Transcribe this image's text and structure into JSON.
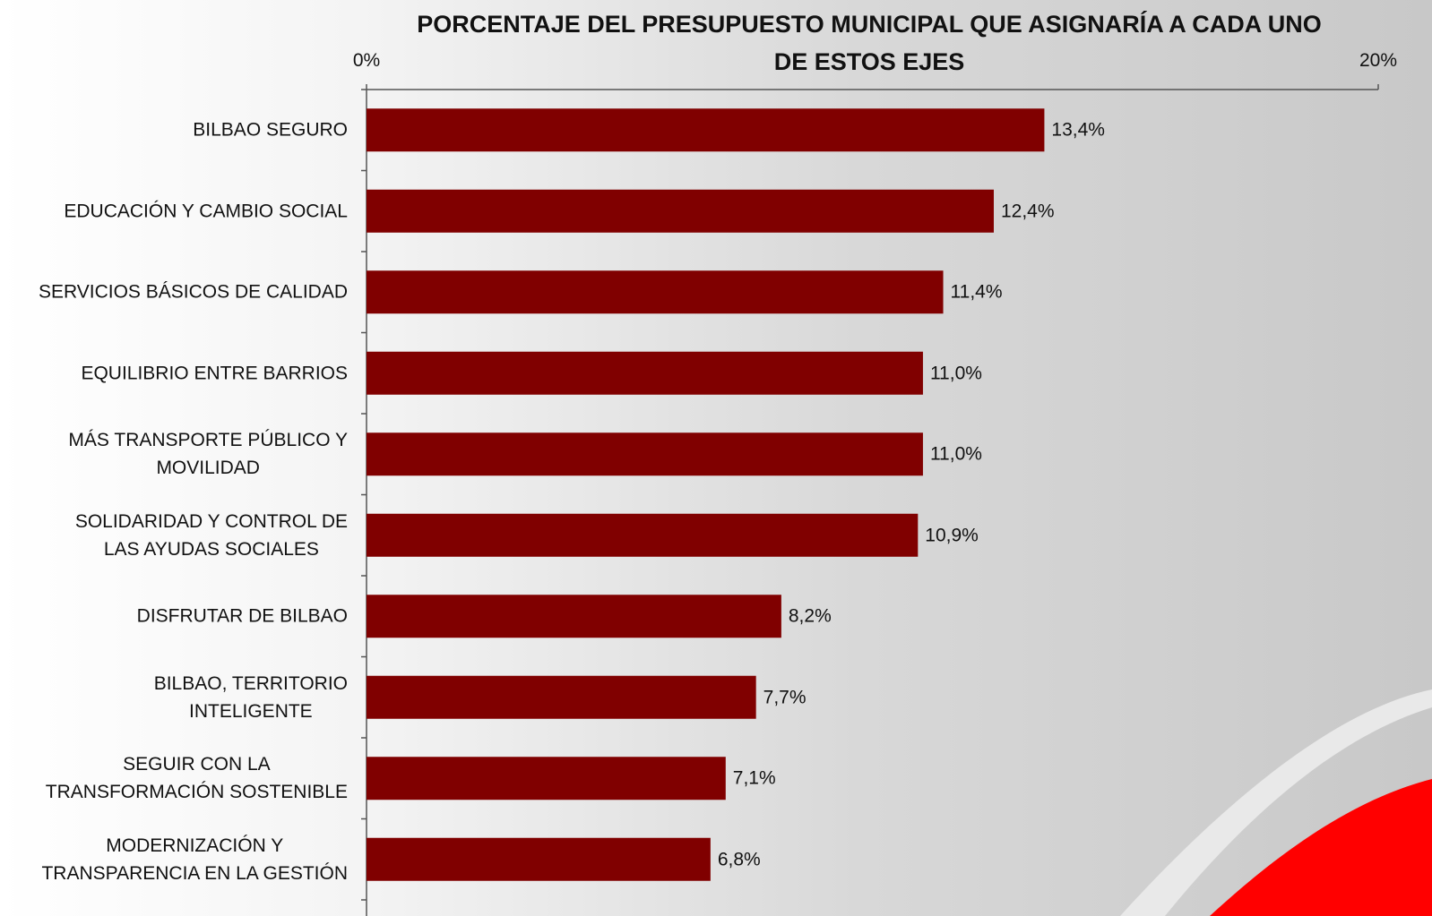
{
  "chart_data": {
    "type": "bar",
    "orientation": "horizontal",
    "title": "PORCENTAJE DEL PRESUPUESTO MUNICIPAL QUE ASIGNARÍA A CADA UNO DE ESTOS EJES",
    "categories": [
      "BILBAO SEGURO",
      "EDUCACIÓN Y CAMBIO SOCIAL",
      "SERVICIOS BÁSICOS DE CALIDAD",
      "EQUILIBRIO ENTRE BARRIOS",
      "MÁS TRANSPORTE PÚBLICO Y\nMOVILIDAD",
      "SOLIDARIDAD Y CONTROL DE\nLAS AYUDAS SOCIALES",
      "DISFRUTAR DE BILBAO",
      "BILBAO, TERRITORIO\nINTELIGENTE",
      "SEGUIR CON LA\nTRANSFORMACIÓN SOSTENIBLE",
      "MODERNIZACIÓN Y\nTRANSPARENCIA EN LA GESTIÓN"
    ],
    "values": [
      13.4,
      12.4,
      11.4,
      11.0,
      11.0,
      10.9,
      8.2,
      7.7,
      7.1,
      6.8
    ],
    "value_labels": [
      "13,4%",
      "12,4%",
      "11,4%",
      "11,0%",
      "11,0%",
      "10,9%",
      "8,2%",
      "7,7%",
      "7,1%",
      "6,8%"
    ],
    "color": "#800000",
    "xlim": [
      0,
      20
    ],
    "xticks": [
      {
        "value": 0,
        "label": "0%"
      },
      {
        "value": 20,
        "label": "20%"
      }
    ],
    "grid": false
  }
}
